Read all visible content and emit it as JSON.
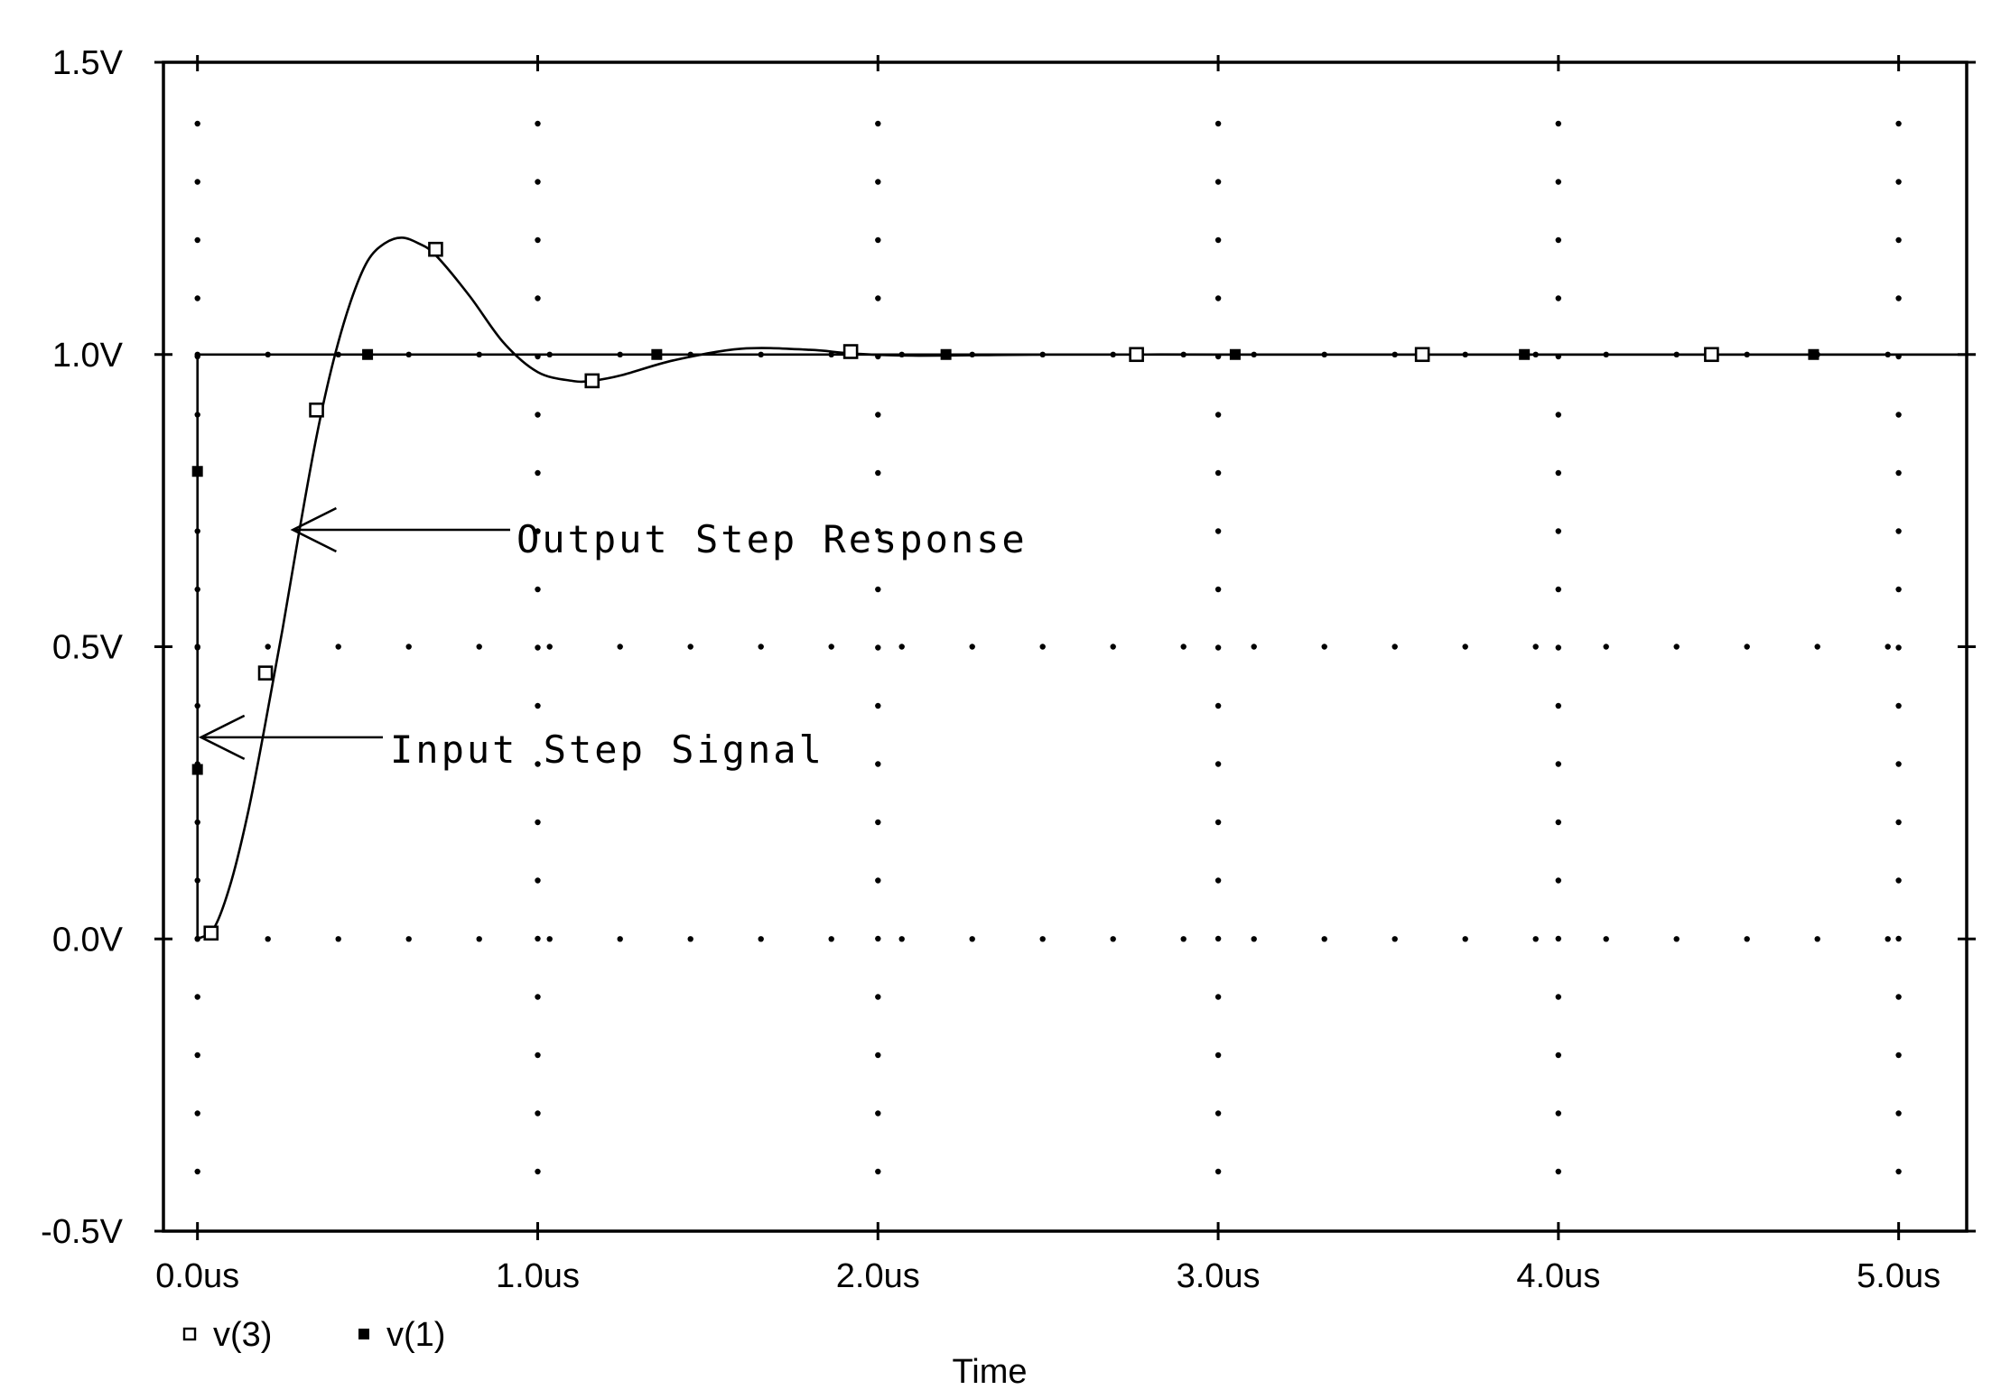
{
  "chart_data": {
    "type": "line",
    "xlabel": "Time",
    "ylabel": "",
    "xlim": [
      -0.1,
      5.2
    ],
    "ylim": [
      -0.5,
      1.5
    ],
    "x_unit": "us",
    "y_unit": "V",
    "x_ticks": [
      0,
      1,
      2,
      3,
      4,
      5
    ],
    "x_tick_labels": [
      "0.0us",
      "1.0us",
      "2.0us",
      "3.0us",
      "4.0us",
      "5.0us"
    ],
    "y_ticks": [
      -0.5,
      0,
      0.5,
      1.0,
      1.5
    ],
    "y_tick_labels": [
      "-0.5V",
      "0.0V",
      "0.5V",
      "1.0V",
      "1.5V"
    ],
    "grid": "dotted",
    "legend_placement": "bottom-left",
    "series": [
      {
        "name": "v(3)",
        "marker": "hollow-square",
        "x": [
          0,
          0.05,
          0.1,
          0.15,
          0.2,
          0.25,
          0.3,
          0.35,
          0.4,
          0.45,
          0.5,
          0.55,
          0.6,
          0.65,
          0.7,
          0.8,
          0.9,
          1.0,
          1.1,
          1.16,
          1.25,
          1.4,
          1.6,
          1.8,
          1.92,
          2.1,
          2.5,
          3.0,
          3.5,
          4.0,
          4.5,
          5.0,
          5.2
        ],
        "y": [
          0,
          0.02,
          0.1,
          0.22,
          0.37,
          0.53,
          0.7,
          0.86,
          0.99,
          1.09,
          1.16,
          1.19,
          1.2,
          1.19,
          1.17,
          1.1,
          1.02,
          0.97,
          0.955,
          0.955,
          0.965,
          0.99,
          1.01,
          1.008,
          1.002,
          0.998,
          1.0,
          1.0,
          1.0,
          1.0,
          1.0,
          1.0,
          1.0
        ],
        "markers_x": [
          0.04,
          0.2,
          0.35,
          0.7,
          1.16,
          1.92,
          2.76,
          3.6,
          4.45
        ],
        "markers_y": [
          0.01,
          0.455,
          0.905,
          1.18,
          0.955,
          1.005,
          1.0,
          1.0,
          1.0
        ]
      },
      {
        "name": "v(1)",
        "marker": "filled-square",
        "x": [
          0,
          0,
          5.2
        ],
        "y": [
          0,
          1.0,
          1.0
        ],
        "markers_x": [
          0,
          0,
          0.5,
          1.35,
          2.2,
          3.05,
          3.9,
          4.75
        ],
        "markers_y": [
          0.8,
          0.29,
          1.0,
          1.0,
          1.0,
          1.0,
          1.0,
          1.0
        ]
      }
    ],
    "annotations": [
      {
        "text": "Output Step Response",
        "target_x": 0.27,
        "target_y": 0.7
      },
      {
        "text": "Input Step Signal",
        "target_x": 0.0,
        "target_y": 0.345
      }
    ]
  }
}
